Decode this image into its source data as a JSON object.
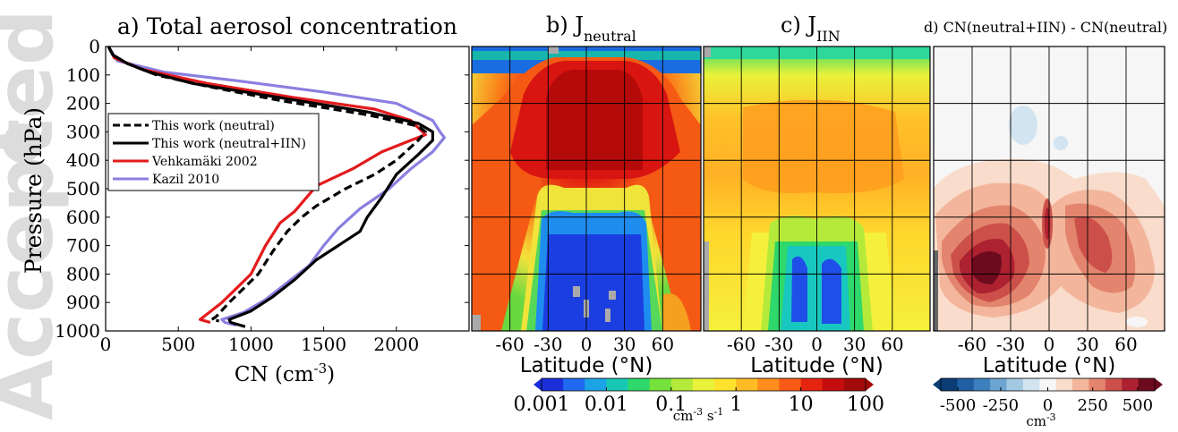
{
  "watermark": {
    "text": "Accepted Article"
  },
  "panel_a": {
    "title": "a) Total aerosol concentration",
    "xlabel": "CN (cm",
    "xlabel_sup": "-3",
    "xlabel_tail": ")",
    "ylabel": "Pressure (hPa)",
    "chart_data": {
      "type": "line",
      "xlim": [
        0,
        2500
      ],
      "ylim": [
        1000,
        0
      ],
      "x_ticks": [
        "0",
        "500",
        "1000",
        "1500",
        "2000"
      ],
      "y_ticks": [
        "0",
        "100",
        "200",
        "300",
        "400",
        "500",
        "600",
        "700",
        "800",
        "900",
        "1000"
      ],
      "legend_position": "middle-left",
      "series": [
        {
          "name": "This work (neutral)",
          "color": "#000000",
          "dash": true,
          "points": [
            [
              20,
              0
            ],
            [
              50,
              30
            ],
            [
              150,
              60
            ],
            [
              350,
              100
            ],
            [
              700,
              140
            ],
            [
              1200,
              190
            ],
            [
              1800,
              240
            ],
            [
              2150,
              280
            ],
            [
              2200,
              300
            ],
            [
              2150,
              330
            ],
            [
              2000,
              400
            ],
            [
              1850,
              450
            ],
            [
              1650,
              500
            ],
            [
              1450,
              560
            ],
            [
              1350,
              600
            ],
            [
              1250,
              650
            ],
            [
              1150,
              720
            ],
            [
              1050,
              800
            ],
            [
              950,
              850
            ],
            [
              850,
              900
            ],
            [
              760,
              950
            ],
            [
              730,
              960
            ],
            [
              780,
              965
            ]
          ]
        },
        {
          "name": "This work (neutral+IIN)",
          "color": "#000000",
          "dash": false,
          "points": [
            [
              20,
              0
            ],
            [
              50,
              30
            ],
            [
              150,
              60
            ],
            [
              300,
              90
            ],
            [
              600,
              130
            ],
            [
              1200,
              180
            ],
            [
              1800,
              230
            ],
            [
              2150,
              270
            ],
            [
              2250,
              300
            ],
            [
              2250,
              330
            ],
            [
              2150,
              380
            ],
            [
              2000,
              450
            ],
            [
              1900,
              530
            ],
            [
              1800,
              600
            ],
            [
              1750,
              650
            ],
            [
              1600,
              700
            ],
            [
              1450,
              750
            ],
            [
              1300,
              820
            ],
            [
              1150,
              880
            ],
            [
              1000,
              930
            ],
            [
              850,
              960
            ],
            [
              860,
              970
            ],
            [
              960,
              985
            ]
          ]
        },
        {
          "name": "Vehkamäki 2002",
          "color": "#e41a1c",
          "dash": false,
          "points": [
            [
              20,
              0
            ],
            [
              60,
              40
            ],
            [
              250,
              80
            ],
            [
              700,
              130
            ],
            [
              1300,
              180
            ],
            [
              1850,
              220
            ],
            [
              2100,
              260
            ],
            [
              2200,
              310
            ],
            [
              2100,
              330
            ],
            [
              1900,
              370
            ],
            [
              1700,
              430
            ],
            [
              1450,
              490
            ],
            [
              1300,
              580
            ],
            [
              1200,
              620
            ],
            [
              1100,
              700
            ],
            [
              1000,
              800
            ],
            [
              900,
              850
            ],
            [
              800,
              900
            ],
            [
              700,
              940
            ],
            [
              650,
              960
            ],
            [
              720,
              970
            ]
          ]
        },
        {
          "name": "Kazil 2010",
          "color": "#8a7fe0",
          "dash": false,
          "points": [
            [
              20,
              0
            ],
            [
              80,
              50
            ],
            [
              400,
              90
            ],
            [
              900,
              120
            ],
            [
              1500,
              160
            ],
            [
              2000,
              200
            ],
            [
              2250,
              260
            ],
            [
              2300,
              300
            ],
            [
              2330,
              320
            ],
            [
              2250,
              370
            ],
            [
              2100,
              430
            ],
            [
              1950,
              500
            ],
            [
              1750,
              570
            ],
            [
              1600,
              640
            ],
            [
              1500,
              700
            ],
            [
              1400,
              770
            ],
            [
              1250,
              830
            ],
            [
              1100,
              890
            ],
            [
              950,
              935
            ],
            [
              800,
              960
            ],
            [
              820,
              970
            ],
            [
              900,
              980
            ]
          ]
        }
      ]
    }
  },
  "panel_b": {
    "title": "b) J",
    "title_sub": "neutral"
  },
  "panel_c": {
    "title": "c) J",
    "title_sub": "IIN"
  },
  "panel_d": {
    "title": "d) CN(neutral+IIN) - CN(neutral)"
  },
  "lat_axis": {
    "label": "Latitude (°N)",
    "ticks": [
      "-60",
      "-30",
      "0",
      "30",
      "60"
    ],
    "tick_values": [
      -60,
      -30,
      0,
      30,
      60
    ],
    "range": [
      -90,
      90
    ]
  },
  "colorbar_rate": {
    "tick_labels": [
      "0.001",
      "0.01",
      "0.1",
      "1",
      "10",
      "100"
    ],
    "unit": "cm",
    "unit_sup1": "-3",
    "unit_mid": " s",
    "unit_sup2": "-1",
    "colors": [
      "#1a2fd9",
      "#1f6af0",
      "#1ca3e6",
      "#18c8b4",
      "#2ed86a",
      "#74e23a",
      "#b5ea3a",
      "#e9f23a",
      "#ffe22e",
      "#ffbb25",
      "#ff8c1c",
      "#fa5a15",
      "#e52510",
      "#c50d0d",
      "#a30a0a"
    ]
  },
  "colorbar_diff": {
    "tick_labels": [
      "-500",
      "-250",
      "0",
      "250",
      "500"
    ],
    "unit": "cm",
    "unit_sup": "-3",
    "colors": [
      "#0b3c74",
      "#1f5fa2",
      "#3d80bd",
      "#6da5d2",
      "#a3c9e3",
      "#d2e4f0",
      "#f6f6f6",
      "#f9dccb",
      "#f3b69c",
      "#e3856e",
      "#cc5049",
      "#ad2130",
      "#6d0a1e"
    ]
  }
}
